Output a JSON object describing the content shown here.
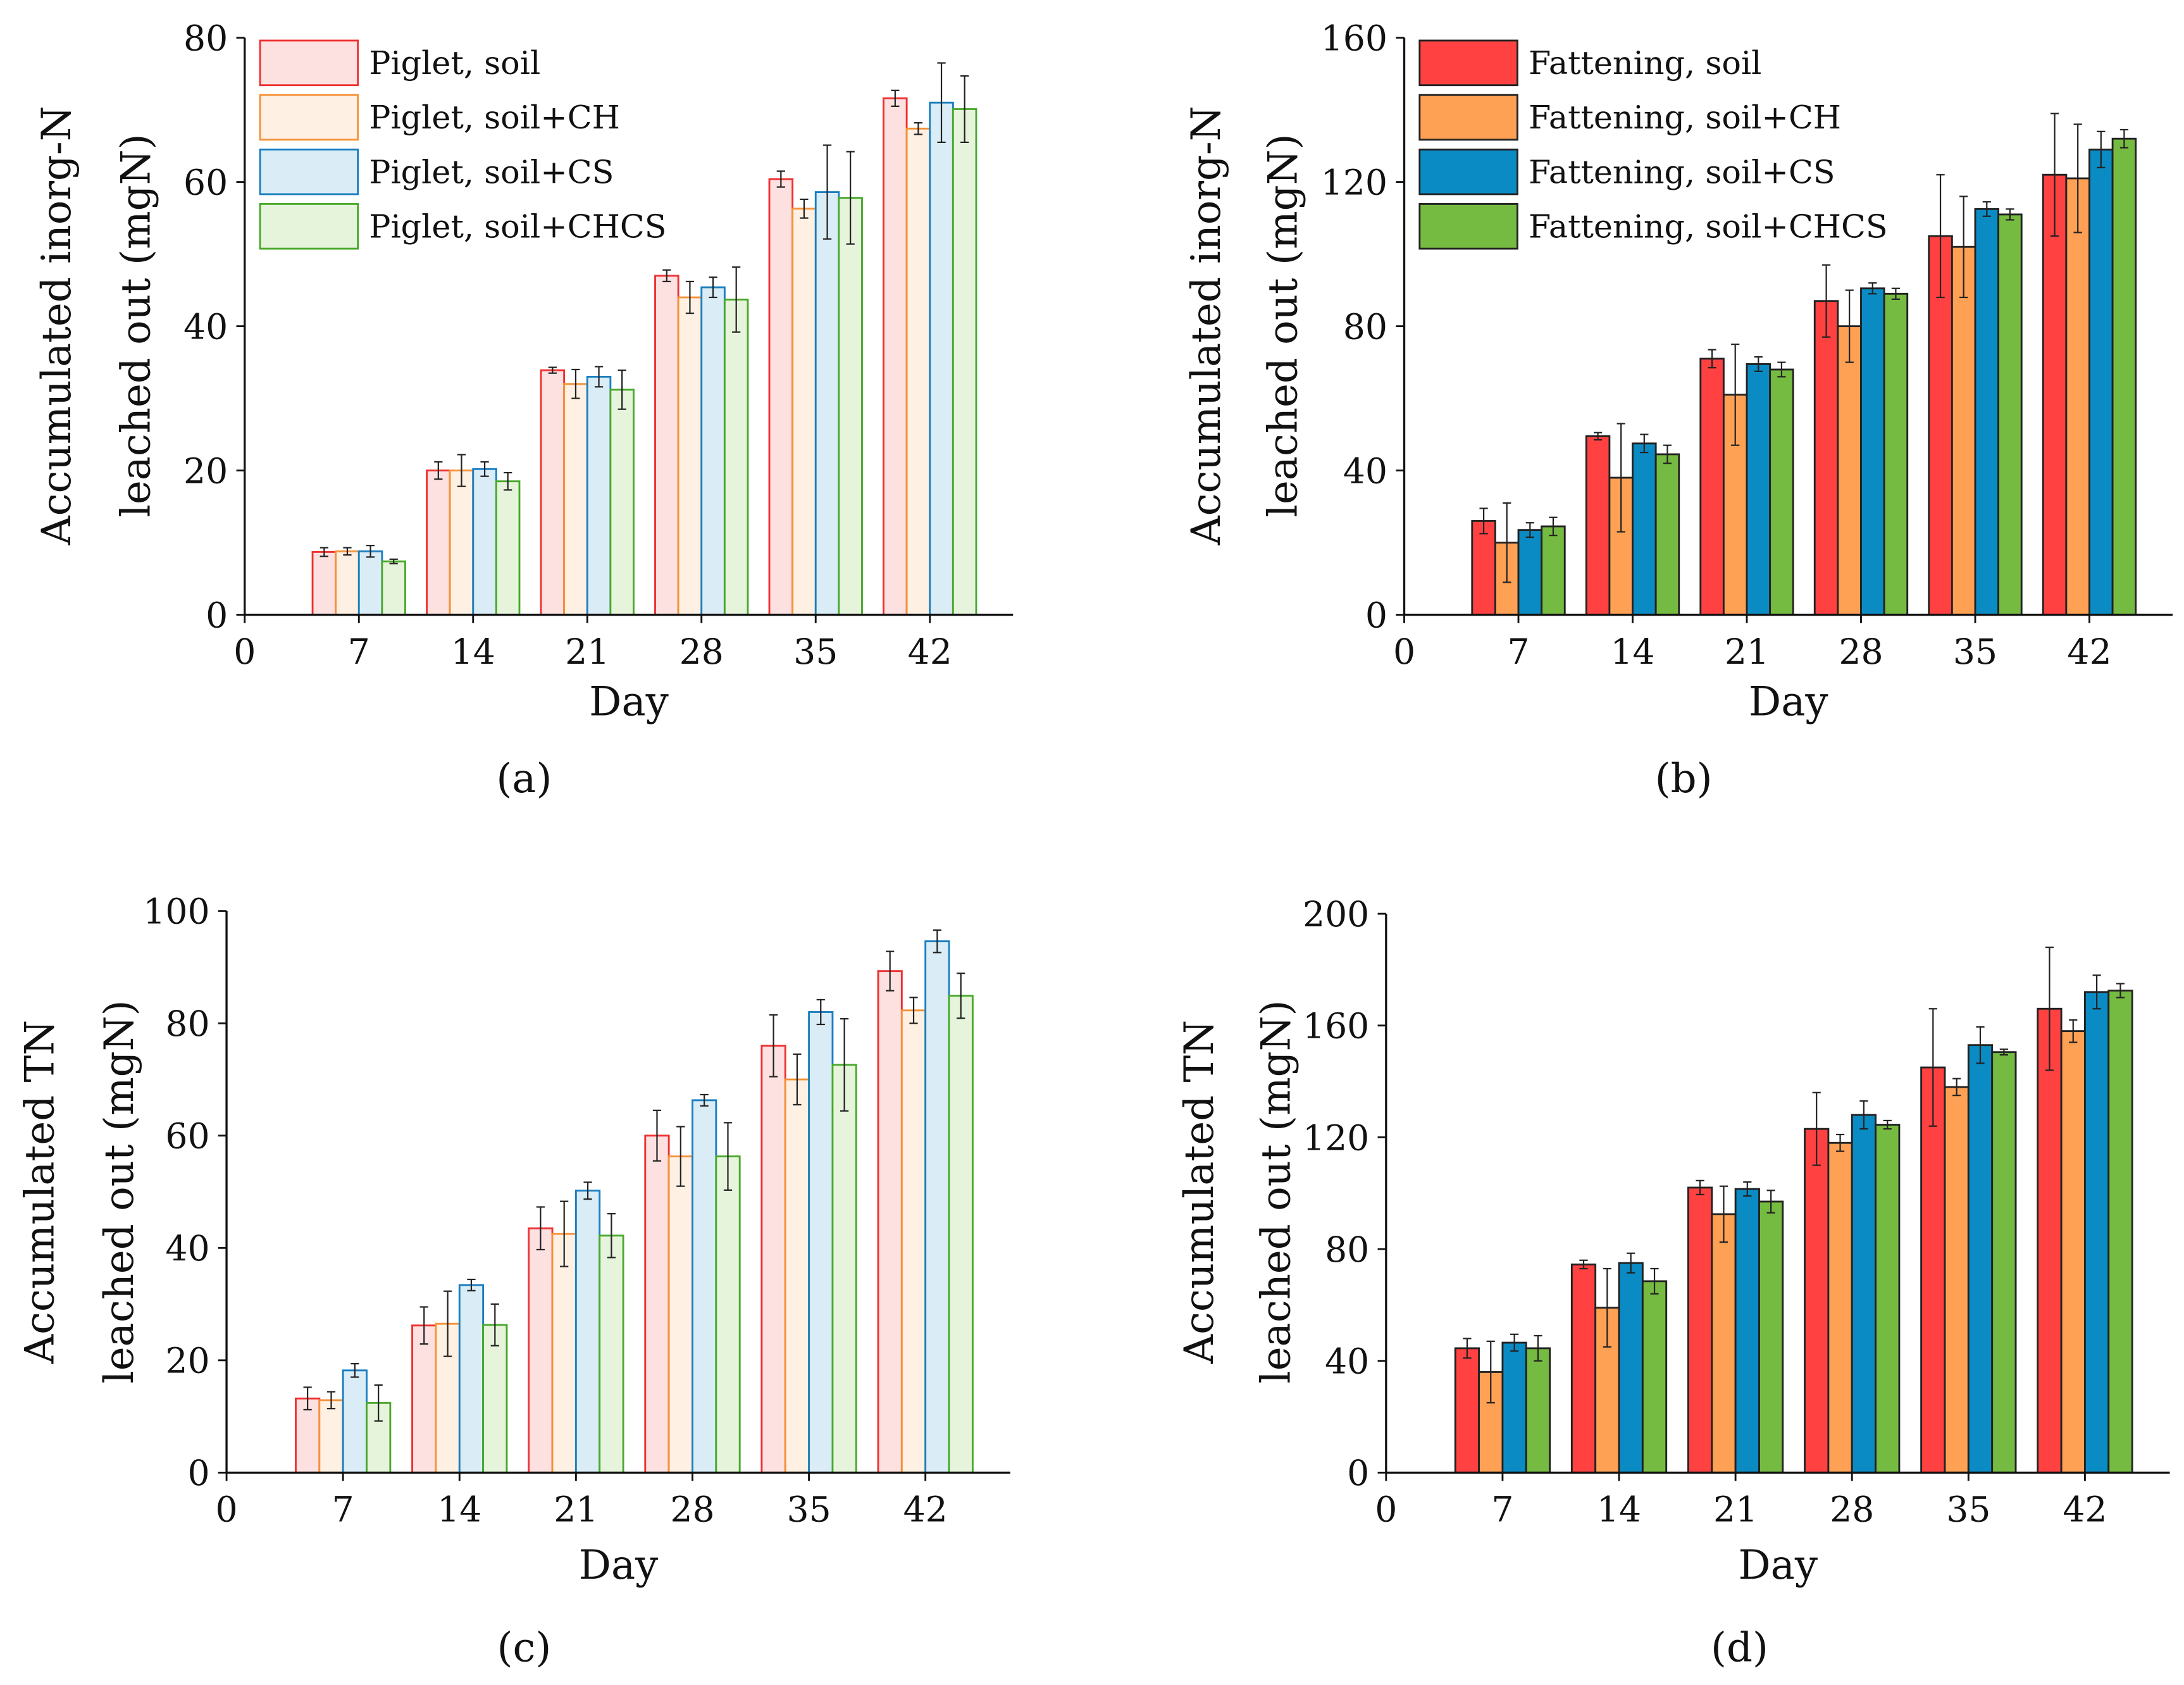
{
  "chart_data": [
    {
      "id": "a",
      "panel_label": "(a)",
      "type": "bar",
      "style": "light",
      "xlabel": "Day",
      "ylabel": [
        "Accumulated inorg-N",
        "leached out (mgN)"
      ],
      "xticks": [
        0,
        7,
        14,
        21,
        28,
        35,
        42
      ],
      "yticks": [
        0,
        20,
        40,
        60,
        80
      ],
      "xlim": [
        0,
        47.1
      ],
      "ylim": [
        0,
        80
      ],
      "legend": "top-left",
      "categories": [
        7,
        14,
        21,
        28,
        35,
        42
      ],
      "series": [
        {
          "name": "Piglet, soil",
          "values": [
            8.7,
            20.0,
            33.9,
            47.0,
            60.4,
            71.6
          ],
          "errors": [
            0.6,
            1.2,
            0.4,
            0.8,
            1.1,
            1.1
          ]
        },
        {
          "name": "Piglet, soil+CH",
          "values": [
            8.8,
            20.0,
            32.0,
            44.0,
            56.3,
            67.4
          ],
          "errors": [
            0.5,
            2.2,
            2.0,
            2.2,
            1.3,
            0.8
          ]
        },
        {
          "name": "Piglet, soil+CS",
          "values": [
            8.8,
            20.2,
            33.0,
            45.4,
            58.6,
            71.0
          ],
          "errors": [
            0.8,
            1.0,
            1.4,
            1.4,
            6.5,
            5.5
          ]
        },
        {
          "name": "Piglet, soil+CHCS",
          "values": [
            7.4,
            18.5,
            31.2,
            43.7,
            57.8,
            70.1
          ],
          "errors": [
            0.3,
            1.2,
            2.7,
            4.5,
            6.4,
            4.6
          ]
        }
      ]
    },
    {
      "id": "b",
      "panel_label": "(b)",
      "type": "bar",
      "style": "solid",
      "xlabel": "Day",
      "ylabel": [
        "Accumulated inorg-N",
        "leached out (mgN)"
      ],
      "xticks": [
        0,
        7,
        14,
        21,
        28,
        35,
        42
      ],
      "yticks": [
        0,
        40,
        80,
        120,
        160
      ],
      "xlim": [
        0,
        47.1
      ],
      "ylim": [
        0,
        160
      ],
      "legend": "top-left",
      "categories": [
        7,
        14,
        21,
        28,
        35,
        42
      ],
      "series": [
        {
          "name": "Fattening, soil",
          "values": [
            26,
            49.5,
            71,
            87,
            105,
            122
          ],
          "errors": [
            3.5,
            1,
            2.5,
            10,
            17,
            17
          ]
        },
        {
          "name": "Fattening, soil+CH",
          "values": [
            20,
            38,
            61,
            80,
            102,
            121
          ],
          "errors": [
            11,
            15,
            14,
            10,
            14,
            15
          ]
        },
        {
          "name": "Fattening, soil+CS",
          "values": [
            23.5,
            47.5,
            69.5,
            90.5,
            112.5,
            129
          ],
          "errors": [
            2,
            2.5,
            2,
            1.5,
            2,
            5
          ]
        },
        {
          "name": "Fattening, soil+CHCS",
          "values": [
            24.5,
            44.5,
            68,
            89,
            111,
            132
          ],
          "errors": [
            2.5,
            2.5,
            2,
            1.5,
            1.5,
            2.5
          ]
        }
      ]
    },
    {
      "id": "c",
      "panel_label": "(c)",
      "type": "bar",
      "style": "light",
      "xlabel": "Day",
      "ylabel": [
        "Accumulated TN",
        "leached out (mgN)"
      ],
      "xticks": [
        0,
        7,
        14,
        21,
        28,
        35,
        42
      ],
      "yticks": [
        0,
        20,
        40,
        60,
        80,
        100
      ],
      "xlim": [
        0,
        47.1
      ],
      "ylim": [
        0,
        100
      ],
      "legend": "none",
      "categories": [
        7,
        14,
        21,
        28,
        35,
        42
      ],
      "series": [
        {
          "name": "Piglet, soil",
          "values": [
            13.2,
            26.2,
            43.5,
            60.0,
            76.0,
            89.3
          ],
          "errors": [
            2,
            3.3,
            3.8,
            4.5,
            5.5,
            3.5
          ]
        },
        {
          "name": "Piglet, soil+CH",
          "values": [
            12.9,
            26.5,
            42.5,
            56.3,
            70.0,
            82.3
          ],
          "errors": [
            1.5,
            5.8,
            5.8,
            5.3,
            4.5,
            2.3
          ]
        },
        {
          "name": "Piglet, soil+CS",
          "values": [
            18.2,
            33.4,
            50.2,
            66.3,
            82.0,
            94.6
          ],
          "errors": [
            1.2,
            1,
            1.5,
            1,
            2.2,
            2
          ]
        },
        {
          "name": "Piglet, soil+CHCS",
          "values": [
            12.4,
            26.3,
            42.2,
            56.3,
            72.6,
            84.9
          ],
          "errors": [
            3.2,
            3.7,
            3.9,
            6,
            8.2,
            4
          ]
        }
      ]
    },
    {
      "id": "d",
      "panel_label": "(d)",
      "type": "bar",
      "style": "solid",
      "xlabel": "Day",
      "ylabel": [
        "Accumulated TN",
        "leached out (mgN)"
      ],
      "xticks": [
        0,
        7,
        14,
        21,
        28,
        35,
        42
      ],
      "yticks": [
        0,
        40,
        80,
        120,
        160,
        200
      ],
      "xlim": [
        0,
        47.1
      ],
      "ylim": [
        0,
        200
      ],
      "legend": "none",
      "categories": [
        7,
        14,
        21,
        28,
        35,
        42
      ],
      "series": [
        {
          "name": "Fattening, soil",
          "values": [
            44.5,
            74.5,
            102,
            123,
            145,
            166
          ],
          "errors": [
            3.5,
            1.5,
            2.5,
            13,
            21,
            22
          ]
        },
        {
          "name": "Fattening, soil+CH",
          "values": [
            36,
            59,
            92.5,
            118,
            138,
            158
          ],
          "errors": [
            11,
            14,
            10,
            3,
            3,
            4
          ]
        },
        {
          "name": "Fattening, soil+CS",
          "values": [
            46.5,
            75,
            101.5,
            128,
            153,
            172
          ],
          "errors": [
            3,
            3.5,
            2.5,
            5,
            6.5,
            6
          ]
        },
        {
          "name": "Fattening, soil+CHCS",
          "values": [
            44.5,
            68.5,
            97,
            124.5,
            150.5,
            172.5
          ],
          "errors": [
            4.5,
            4.5,
            4,
            1.5,
            1,
            2.5
          ]
        }
      ]
    }
  ],
  "colors": {
    "light_stroke": [
      "#ee3030",
      "#f59238",
      "#1a7fc0",
      "#48a82a"
    ],
    "light_fill": [
      "#fde1e1",
      "#fef0e2",
      "#daecf6",
      "#e7f4dc"
    ],
    "solid_fill": [
      "#ff4141",
      "#ffa154",
      "#0b8bc4",
      "#76bb41"
    ]
  }
}
